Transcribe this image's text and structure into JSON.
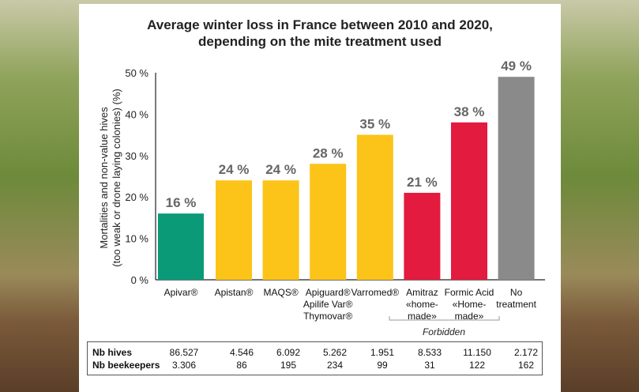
{
  "chart_data": {
    "type": "bar",
    "title_lines": [
      "Average winter loss in France between 2010 and 2020,",
      "depending on the mite treatment used"
    ],
    "ylabel_lines": [
      "Mortalities and non-value hives",
      "(too weak or drone laying colonies) (%)"
    ],
    "ylim": [
      0,
      50
    ],
    "yticks": [
      "0 %",
      "10 %",
      "20 %",
      "30 %",
      "40 %",
      "50 %"
    ],
    "categories": [
      [
        "Apivar®"
      ],
      [
        "Apistan®"
      ],
      [
        "MAQS®"
      ],
      [
        "Apiguard®",
        "Apilife Var®",
        "Thymovar®"
      ],
      [
        "Varromed®"
      ],
      [
        "Amitraz",
        "«home-",
        "made»"
      ],
      [
        "Formic Acid",
        "«Home-",
        "made»"
      ],
      [
        "No",
        "treatment"
      ]
    ],
    "values": [
      16,
      24,
      24,
      28,
      35,
      21,
      38,
      49
    ],
    "data_labels": [
      "16 %",
      "24 %",
      "24 %",
      "28 %",
      "35 %",
      "21 %",
      "38 %",
      "49 %"
    ],
    "colors": [
      "#0a9a78",
      "#fcc318",
      "#fcc318",
      "#fcc318",
      "#fcc318",
      "#e31b3f",
      "#e31b3f",
      "#8a8a8a"
    ],
    "group_annotation": "Forbidden",
    "grid": false
  },
  "table": {
    "rows": [
      {
        "label": "Nb hives",
        "values": [
          "86.527",
          "4.546",
          "6.092",
          "5.262",
          "1.951",
          "8.533",
          "11.150",
          "2.172"
        ]
      },
      {
        "label": "Nb beekeepers",
        "values": [
          "3.306",
          "86",
          "195",
          "234",
          "99",
          "31",
          "122",
          "162"
        ]
      }
    ]
  }
}
